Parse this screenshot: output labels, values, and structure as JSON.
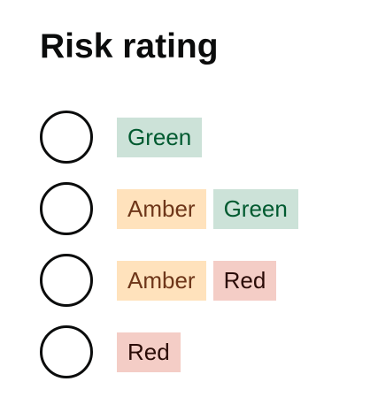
{
  "heading": "Risk rating",
  "colors": {
    "green_bg": "#cce2d8",
    "green_text": "#005a30",
    "amber_bg": "#ffe2bc",
    "amber_text": "#6e3619",
    "red_bg": "#f4cdc6",
    "red_text": "#2a0b06"
  },
  "options": [
    {
      "selected": false,
      "tags": [
        {
          "label": "Green",
          "color": "green"
        }
      ]
    },
    {
      "selected": false,
      "tags": [
        {
          "label": "Amber",
          "color": "amber"
        },
        {
          "label": "Green",
          "color": "green"
        }
      ]
    },
    {
      "selected": false,
      "tags": [
        {
          "label": "Amber",
          "color": "amber"
        },
        {
          "label": "Red",
          "color": "red"
        }
      ]
    },
    {
      "selected": false,
      "tags": [
        {
          "label": "Red",
          "color": "red"
        }
      ]
    }
  ]
}
